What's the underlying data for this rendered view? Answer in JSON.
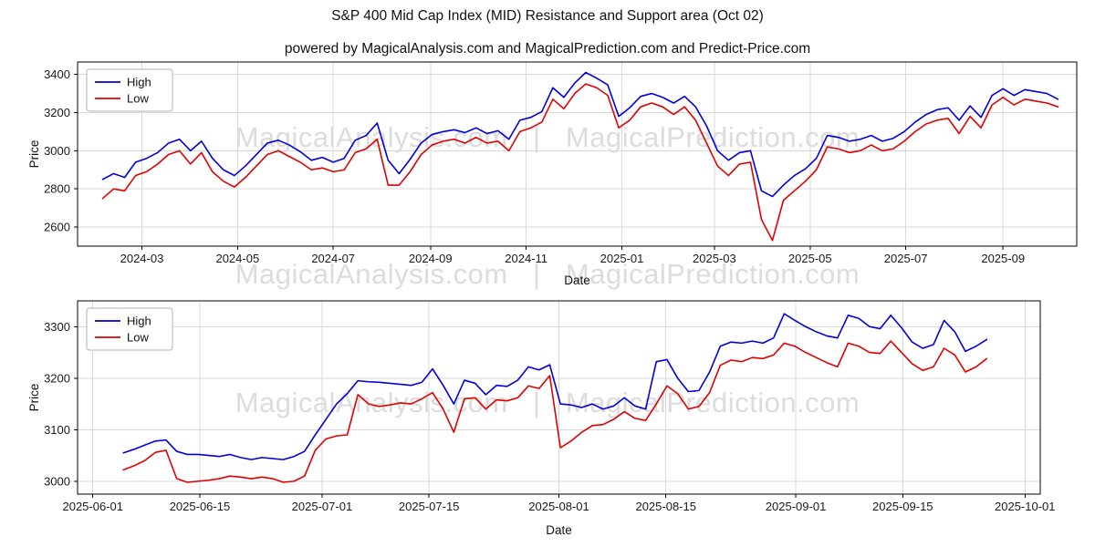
{
  "page": {
    "title": "S&P 400 Mid Cap Index (MID) Resistance and Support area (Oct 02)",
    "subtitle": "powered by MagicalAnalysis.com and MagicalPrediction.com and Predict-Price.com"
  },
  "watermark": {
    "text": "MagicalAnalysis.com   |   MagicalPrediction.com",
    "color": "#dcdcdc"
  },
  "chart_data": [
    {
      "type": "line",
      "title": "",
      "xlabel": "Date",
      "ylabel": "Price",
      "legend_position": "upper-left",
      "grid": true,
      "xlim": [
        -12,
        625
      ],
      "ylim": [
        2500,
        3465
      ],
      "y_ticks": [
        2600,
        2800,
        3000,
        3200,
        3400
      ],
      "x_ticks": [
        {
          "pos": 29,
          "label": "2024-03"
        },
        {
          "pos": 90,
          "label": "2024-05"
        },
        {
          "pos": 151,
          "label": "2024-07"
        },
        {
          "pos": 213,
          "label": "2024-09"
        },
        {
          "pos": 274,
          "label": "2024-11"
        },
        {
          "pos": 335,
          "label": "2025-01"
        },
        {
          "pos": 394,
          "label": "2025-03"
        },
        {
          "pos": 455,
          "label": "2025-05"
        },
        {
          "pos": 516,
          "label": "2025-07"
        },
        {
          "pos": 578,
          "label": "2025-09"
        }
      ],
      "x_start": 4,
      "x_step": 7,
      "series": [
        {
          "name": "High",
          "color": "#0000e0",
          "values": [
            2850,
            2880,
            2860,
            2940,
            2960,
            2990,
            3040,
            3060,
            3000,
            3050,
            2960,
            2900,
            2870,
            2920,
            2980,
            3040,
            3055,
            3030,
            2995,
            2950,
            2965,
            2940,
            2960,
            3055,
            3080,
            3145,
            2950,
            2880,
            2955,
            3040,
            3085,
            3100,
            3110,
            3095,
            3120,
            3090,
            3105,
            3060,
            3160,
            3175,
            3205,
            3330,
            3280,
            3355,
            3410,
            3380,
            3345,
            3180,
            3225,
            3285,
            3300,
            3280,
            3250,
            3285,
            3230,
            3130,
            3000,
            2950,
            2990,
            3000,
            2790,
            2760,
            2820,
            2870,
            2905,
            2960,
            3080,
            3070,
            3050,
            3060,
            3080,
            3050,
            3065,
            3100,
            3150,
            3190,
            3215,
            3225,
            3160,
            3235,
            3175,
            3290,
            3325,
            3290,
            3320,
            3310,
            3300,
            3270
          ]
        },
        {
          "name": "Low",
          "color": "#e00000",
          "values": [
            2750,
            2800,
            2790,
            2870,
            2890,
            2930,
            2980,
            3000,
            2930,
            2990,
            2890,
            2840,
            2810,
            2860,
            2920,
            2980,
            3000,
            2970,
            2940,
            2900,
            2910,
            2890,
            2900,
            2990,
            3010,
            3060,
            2820,
            2820,
            2890,
            2980,
            3030,
            3050,
            3060,
            3040,
            3070,
            3040,
            3050,
            3000,
            3100,
            3120,
            3150,
            3270,
            3220,
            3300,
            3350,
            3330,
            3290,
            3120,
            3160,
            3230,
            3250,
            3230,
            3190,
            3230,
            3160,
            3040,
            2920,
            2870,
            2930,
            2940,
            2640,
            2530,
            2740,
            2790,
            2840,
            2900,
            3020,
            3010,
            2990,
            3000,
            3030,
            3000,
            3010,
            3050,
            3100,
            3140,
            3160,
            3170,
            3090,
            3180,
            3120,
            3240,
            3280,
            3240,
            3270,
            3260,
            3250,
            3230
          ]
        }
      ]
    },
    {
      "type": "line",
      "title": "",
      "xlabel": "Date",
      "ylabel": "Price",
      "legend_position": "upper-left",
      "grid": true,
      "xlim": [
        -2,
        124
      ],
      "ylim": [
        2975,
        3350
      ],
      "y_ticks": [
        3000,
        3100,
        3200,
        3300
      ],
      "x_ticks": [
        {
          "pos": 0,
          "label": "2025-06-01"
        },
        {
          "pos": 14,
          "label": "2025-06-15"
        },
        {
          "pos": 30,
          "label": "2025-07-01"
        },
        {
          "pos": 44,
          "label": "2025-07-15"
        },
        {
          "pos": 61,
          "label": "2025-08-01"
        },
        {
          "pos": 75,
          "label": "2025-08-15"
        },
        {
          "pos": 92,
          "label": "2025-09-01"
        },
        {
          "pos": 106,
          "label": "2025-09-15"
        },
        {
          "pos": 122,
          "label": "2025-10-01"
        }
      ],
      "x_start": 4,
      "x_step": 1.395,
      "series": [
        {
          "name": "High",
          "color": "#0000e0",
          "values": [
            3055,
            3062,
            3070,
            3078,
            3080,
            3058,
            3052,
            3052,
            3050,
            3048,
            3052,
            3046,
            3042,
            3046,
            3044,
            3042,
            3048,
            3058,
            3090,
            3120,
            3150,
            3170,
            3195,
            3193,
            3192,
            3190,
            3188,
            3186,
            3192,
            3218,
            3186,
            3150,
            3196,
            3190,
            3168,
            3186,
            3184,
            3196,
            3222,
            3216,
            3226,
            3150,
            3148,
            3143,
            3150,
            3140,
            3146,
            3162,
            3146,
            3140,
            3232,
            3236,
            3200,
            3174,
            3176,
            3212,
            3262,
            3270,
            3268,
            3272,
            3268,
            3278,
            3325,
            3312,
            3300,
            3290,
            3282,
            3278,
            3322,
            3316,
            3300,
            3296,
            3322,
            3298,
            3270,
            3258,
            3265,
            3312,
            3290,
            3252,
            3262,
            3275
          ]
        },
        {
          "name": "Low",
          "color": "#e00000",
          "values": [
            3022,
            3030,
            3040,
            3056,
            3060,
            3005,
            2998,
            3000,
            3002,
            3005,
            3010,
            3008,
            3005,
            3008,
            3005,
            2998,
            3000,
            3010,
            3060,
            3082,
            3088,
            3090,
            3168,
            3150,
            3145,
            3148,
            3152,
            3150,
            3160,
            3172,
            3140,
            3095,
            3160,
            3162,
            3140,
            3158,
            3156,
            3162,
            3185,
            3180,
            3205,
            3065,
            3078,
            3095,
            3108,
            3110,
            3120,
            3135,
            3122,
            3118,
            3150,
            3185,
            3170,
            3140,
            3145,
            3172,
            3225,
            3235,
            3232,
            3240,
            3238,
            3245,
            3268,
            3262,
            3250,
            3240,
            3230,
            3222,
            3268,
            3262,
            3250,
            3248,
            3272,
            3250,
            3228,
            3215,
            3222,
            3258,
            3245,
            3212,
            3222,
            3238
          ]
        }
      ]
    }
  ]
}
